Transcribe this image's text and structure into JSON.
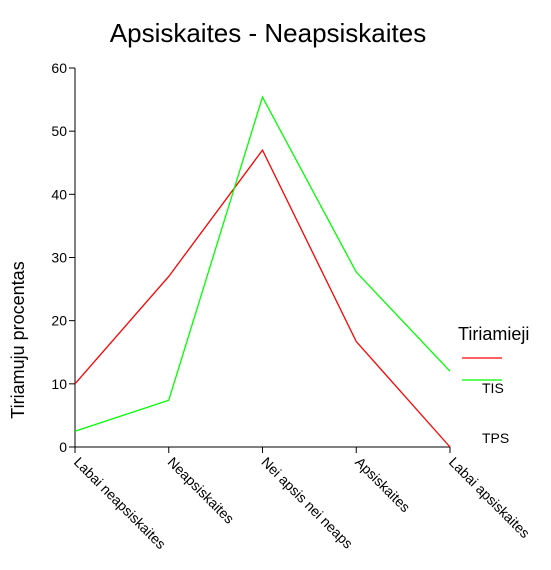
{
  "chart_data": {
    "type": "line",
    "title": "Apsiskaites - Neapsiskaites",
    "y_label": "Tiriamuju procentas",
    "categories": [
      "Labai neapsiskaites",
      "Neapsiskaites",
      "Nei apsis nei neaps",
      "Apsiskaites",
      "Labai apsiskaites"
    ],
    "series": [
      {
        "name": "TIS",
        "color": "#ff0000",
        "values": [
          10,
          27,
          47,
          16.7,
          0
        ]
      },
      {
        "name": "TPS",
        "color": "#00ff00",
        "values": [
          2.5,
          7.4,
          55.4,
          27.7,
          12
        ]
      }
    ],
    "legend_title": "Tiriamieji",
    "ylim": [
      0,
      60
    ],
    "yticks": [
      0,
      10,
      20,
      30,
      40,
      50,
      60
    ],
    "grid": false
  }
}
